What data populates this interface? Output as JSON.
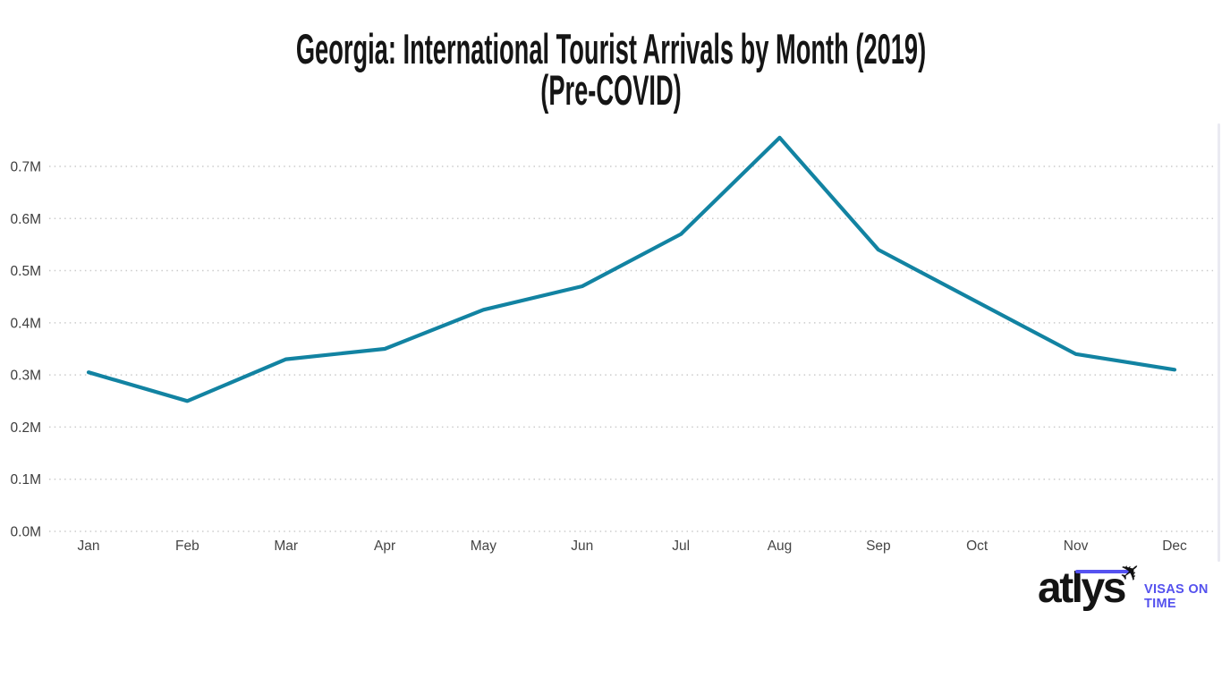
{
  "title": {
    "line1": "Georgia: International Tourist Arrivals by Month (2019)",
    "line2": "(Pre-COVID)"
  },
  "chart_data": {
    "type": "line",
    "title": "Georgia: International Tourist Arrivals by Month (2019) (Pre-COVID)",
    "x": [
      "Jan",
      "Feb",
      "Mar",
      "Apr",
      "May",
      "Jun",
      "Jul",
      "Aug",
      "Sep",
      "Oct",
      "Nov",
      "Dec"
    ],
    "series": [
      {
        "name": "International tourist arrivals",
        "values": [
          305000,
          250000,
          330000,
          350000,
          425000,
          470000,
          570000,
          755000,
          540000,
          440000,
          340000,
          310000
        ]
      }
    ],
    "y_ticks": [
      "0.0M",
      "0.1M",
      "0.2M",
      "0.3M",
      "0.4M",
      "0.5M",
      "0.6M",
      "0.7M"
    ],
    "y_tick_step": 100000,
    "ylim": [
      0,
      780000
    ],
    "xlabel": "",
    "ylabel": "",
    "grid": "horizontal dotted",
    "legend": "none",
    "line_color": "#1283a2",
    "grid_color": "#cbcbcb"
  },
  "logo": {
    "brand": "atlys",
    "plane_icon": "✈",
    "tagline_line1": "VISAS ON",
    "tagline_line2": "TIME",
    "brand_color": "#141414",
    "accent_color": "#5451ee"
  }
}
